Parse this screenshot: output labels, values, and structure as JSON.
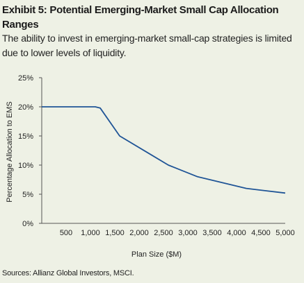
{
  "header": {
    "title": "Exhibit 5: Potential Emerging-Market Small Cap Allocation Ranges",
    "subtitle": "The ability to invest in emerging-market small-cap strategies is limited due to lower levels of liquidity."
  },
  "footer": {
    "source": "Sources: Allianz Global Investors, MSCI."
  },
  "colors": {
    "background": "#eef1e5",
    "line": "#1f5496",
    "axis": "#555555"
  },
  "chart_data": {
    "type": "line",
    "title": "Exhibit 5: Potential Emerging-Market Small Cap Allocation Ranges",
    "xlabel": "Plan Size ($M)",
    "ylabel": "Percentage Allocation to EMS",
    "xlim": [
      0,
      5000
    ],
    "ylim": [
      0,
      25
    ],
    "grid": false,
    "x_ticks": [
      500,
      1000,
      1500,
      2000,
      2500,
      3000,
      3500,
      4000,
      4500,
      5000
    ],
    "x_tick_labels": [
      "500",
      "1,000",
      "1,500",
      "2,000",
      "2,500",
      "3,000",
      "3,500",
      "4,000",
      "4,500",
      "5,000"
    ],
    "y_ticks": [
      0,
      5,
      10,
      15,
      20,
      25
    ],
    "y_tick_labels": [
      "0%",
      "5%",
      "10%",
      "15%",
      "20%",
      "25%"
    ],
    "series": [
      {
        "x": [
          0,
          1100,
          1200,
          1600,
          2200,
          2600,
          3200,
          3600,
          4200,
          4600,
          5000
        ],
        "values": [
          20,
          20,
          19.8,
          15,
          12,
          10,
          8,
          7.2,
          6,
          5.6,
          5.2
        ]
      }
    ]
  }
}
